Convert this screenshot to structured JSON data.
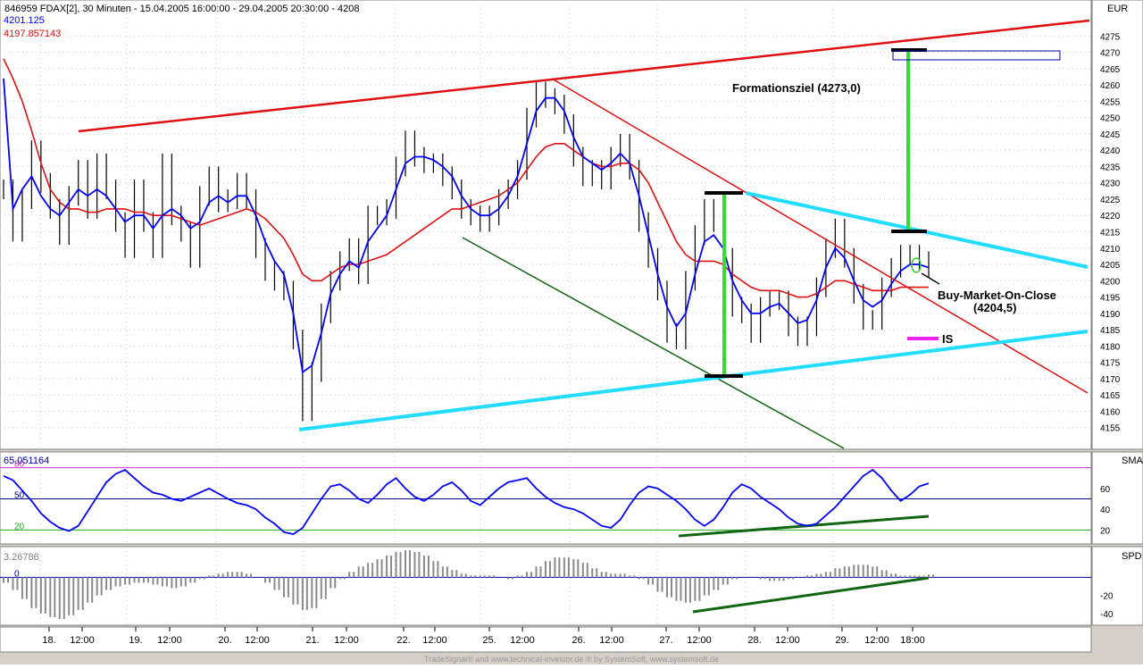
{
  "header": {
    "title": "846959  FDAX[2], 30 Minuten - 15.04.2005 16:00:00 - 29.04.2005 20:30:00 - 4208",
    "value_blue": "4201.125",
    "value_red": "4197.857143",
    "currency": "EUR"
  },
  "footer": {
    "credit": "TradeSignal® and www.technical-investor.de ® by SystemSoft, www.systemsoft.de"
  },
  "annotations": {
    "target": "Formationsziel (4273,0)",
    "buy_line1": "Buy-Market-On-Close",
    "buy_line2": "(4204,5)",
    "is": "IS"
  },
  "colors": {
    "price": "#000000",
    "sma_fast": "#0000ff",
    "sma_slow": "#e01010",
    "trend_red": "#e01010",
    "trend_cyan": "#22ddff",
    "trend_green": "#116611",
    "target_green": "#33dd33",
    "is_magenta": "#ee22ee"
  },
  "chart_data": [
    {
      "type": "line",
      "name": "price",
      "title": "",
      "ylabel": "EUR",
      "ylim": [
        4150,
        4280
      ],
      "yticks": [
        4155,
        4160,
        4165,
        4170,
        4175,
        4180,
        4185,
        4190,
        4195,
        4200,
        4205,
        4210,
        4215,
        4220,
        4225,
        4230,
        4235,
        4240,
        4245,
        4250,
        4255,
        4260,
        4265,
        4270,
        4275
      ],
      "x": [
        0,
        2,
        4,
        6,
        8,
        10,
        12,
        14,
        16,
        18,
        20,
        22,
        24,
        26,
        28,
        30,
        32,
        34,
        36,
        38,
        40,
        42,
        44,
        46,
        48,
        50,
        52,
        54,
        56,
        58,
        60,
        62,
        64,
        66,
        68,
        70,
        72,
        74,
        76,
        78,
        80,
        82,
        84,
        86,
        88,
        90,
        92,
        94,
        96,
        98,
        100,
        102,
        104,
        106,
        108,
        110,
        112,
        114,
        116,
        118,
        120,
        122,
        124,
        126,
        128,
        130,
        132,
        134,
        136,
        138,
        140,
        142,
        144,
        146,
        148,
        150,
        152,
        154,
        156,
        158,
        160,
        162,
        164,
        166,
        168,
        170,
        172,
        174,
        176,
        178,
        180,
        182,
        184,
        186,
        188,
        190,
        192,
        194,
        196,
        198
      ],
      "series": [
        {
          "values": [
            4228,
            4215,
            4225,
            4240,
            4230,
            4222,
            4214,
            4226,
            4234,
            4222,
            4236,
            4228,
            4218,
            4210,
            4228,
            4218,
            4210,
            4236,
            4220,
            4215,
            4207,
            4226,
            4232,
            4224,
            4225,
            4230,
            4225,
            4210,
            4203,
            4200,
            4197,
            4182,
            4160,
            4172,
            4190,
            4200,
            4206,
            4210,
            4202,
            4220,
            4220,
            4222,
            4235,
            4243,
            4238,
            4236,
            4236,
            4232,
            4228,
            4222,
            4220,
            4218,
            4220,
            4225,
            4228,
            4234,
            4250,
            4258,
            4256,
            4254,
            4248,
            4238,
            4232,
            4234,
            4231,
            4238,
            4242,
            4234,
            4218,
            4207,
            4197,
            4184,
            4182,
            4200,
            4214,
            4222,
            4218,
            4207,
            4192,
            4190,
            4184,
            4192,
            4194,
            4194,
            4186,
            4183,
            4186,
            4198,
            4210,
            4216,
            4207,
            4196,
            4188,
            4188,
            4198,
            4204,
            4208,
            4208,
            4206,
            4204
          ]
        },
        {
          "name": "sma-fast",
          "values": [
            4262,
            4222,
            4228,
            4232,
            4226,
            4222,
            4220,
            4224,
            4228,
            4226,
            4228,
            4226,
            4222,
            4218,
            4220,
            4220,
            4216,
            4220,
            4222,
            4220,
            4216,
            4218,
            4224,
            4226,
            4224,
            4226,
            4226,
            4220,
            4212,
            4206,
            4202,
            4190,
            4172,
            4174,
            4184,
            4196,
            4202,
            4206,
            4204,
            4212,
            4216,
            4220,
            4228,
            4236,
            4238,
            4238,
            4237,
            4235,
            4232,
            4226,
            4222,
            4220,
            4220,
            4222,
            4226,
            4232,
            4242,
            4252,
            4256,
            4256,
            4252,
            4244,
            4238,
            4236,
            4234,
            4236,
            4239,
            4236,
            4226,
            4214,
            4202,
            4192,
            4186,
            4190,
            4202,
            4212,
            4214,
            4210,
            4200,
            4194,
            4190,
            4190,
            4192,
            4193,
            4190,
            4187,
            4188,
            4194,
            4204,
            4210,
            4207,
            4200,
            4194,
            4192,
            4194,
            4199,
            4203,
            4205,
            4205,
            4204
          ]
        },
        {
          "name": "sma-slow",
          "values": [
            4268,
            4262,
            4255,
            4246,
            4236,
            4228,
            4224,
            4222,
            4222,
            4221,
            4221,
            4222,
            4222,
            4222,
            4221,
            4221,
            4220,
            4220,
            4220,
            4219,
            4218,
            4217,
            4218,
            4219,
            4220,
            4221,
            4222,
            4221,
            4219,
            4216,
            4213,
            4208,
            4202,
            4200,
            4200,
            4202,
            4204,
            4205,
            4205,
            4206,
            4207,
            4208,
            4210,
            4212,
            4214,
            4216,
            4218,
            4220,
            4222,
            4222,
            4223,
            4224,
            4225,
            4226,
            4228,
            4230,
            4234,
            4238,
            4241,
            4242,
            4242,
            4240,
            4238,
            4236,
            4235,
            4235,
            4236,
            4236,
            4234,
            4230,
            4224,
            4218,
            4212,
            4208,
            4206,
            4206,
            4206,
            4205,
            4202,
            4200,
            4198,
            4197,
            4197,
            4197,
            4196,
            4195,
            4195,
            4196,
            4198,
            4200,
            4200,
            4199,
            4198,
            4197,
            4197,
            4197,
            4198,
            4198,
            4198,
            4198
          ]
        }
      ],
      "xticks": [
        "18.",
        "12:00",
        "19.",
        "12:00",
        "20.",
        "12:00",
        "21.",
        "12:00",
        "22.",
        "12:00",
        "25.",
        "12:00",
        "26.",
        "12:00",
        "27.",
        "12:00",
        "28.",
        "12:00",
        "29.",
        "12:00",
        "18:00"
      ]
    },
    {
      "type": "line",
      "name": "SMA",
      "ylabel": "SMA",
      "readout": "65.051164",
      "ylim": [
        10,
        90
      ],
      "yticks": [
        20,
        40,
        60
      ],
      "levels": [
        {
          "value": 80,
          "label": "80"
        },
        {
          "value": 50,
          "label": "50"
        },
        {
          "value": 20,
          "label": "20"
        }
      ],
      "series": [
        {
          "values": [
            72,
            68,
            58,
            48,
            36,
            28,
            22,
            19,
            24,
            38,
            52,
            66,
            74,
            78,
            70,
            62,
            56,
            54,
            50,
            48,
            52,
            56,
            60,
            55,
            50,
            46,
            44,
            40,
            32,
            26,
            18,
            16,
            22,
            36,
            50,
            62,
            64,
            58,
            50,
            46,
            54,
            64,
            70,
            60,
            52,
            48,
            54,
            62,
            66,
            58,
            48,
            44,
            52,
            60,
            66,
            68,
            70,
            60,
            52,
            46,
            42,
            40,
            36,
            30,
            24,
            22,
            30,
            44,
            56,
            62,
            60,
            54,
            48,
            40,
            30,
            24,
            30,
            42,
            56,
            64,
            60,
            52,
            46,
            40,
            32,
            26,
            24,
            26,
            34,
            42,
            52,
            62,
            72,
            78,
            70,
            58,
            48,
            54,
            62,
            65
          ]
        }
      ]
    },
    {
      "type": "bar",
      "name": "SPD",
      "ylabel": "SPD",
      "readout": "3.26786",
      "ylim": [
        -50,
        30
      ],
      "yticks": [
        -20,
        -40
      ],
      "levels": [
        {
          "value": 0,
          "label": "0"
        }
      ],
      "series": [
        {
          "values": [
            -6,
            -14,
            -24,
            -34,
            -40,
            -44,
            -46,
            -42,
            -36,
            -28,
            -20,
            -14,
            -10,
            -8,
            -6,
            -6,
            -8,
            -10,
            -12,
            -10,
            -6,
            -2,
            2,
            4,
            6,
            6,
            4,
            0,
            -6,
            -14,
            -22,
            -30,
            -36,
            -34,
            -24,
            -12,
            -2,
            6,
            12,
            16,
            20,
            24,
            28,
            30,
            28,
            24,
            18,
            12,
            8,
            4,
            2,
            2,
            2,
            0,
            -2,
            2,
            6,
            12,
            18,
            22,
            22,
            20,
            16,
            10,
            6,
            4,
            4,
            2,
            -2,
            -8,
            -16,
            -22,
            -26,
            -28,
            -26,
            -20,
            -14,
            -8,
            -2,
            0,
            0,
            -2,
            -4,
            -4,
            -2,
            0,
            2,
            4,
            6,
            10,
            12,
            14,
            14,
            12,
            8,
            4,
            2,
            2,
            2,
            3
          ]
        }
      ]
    }
  ]
}
